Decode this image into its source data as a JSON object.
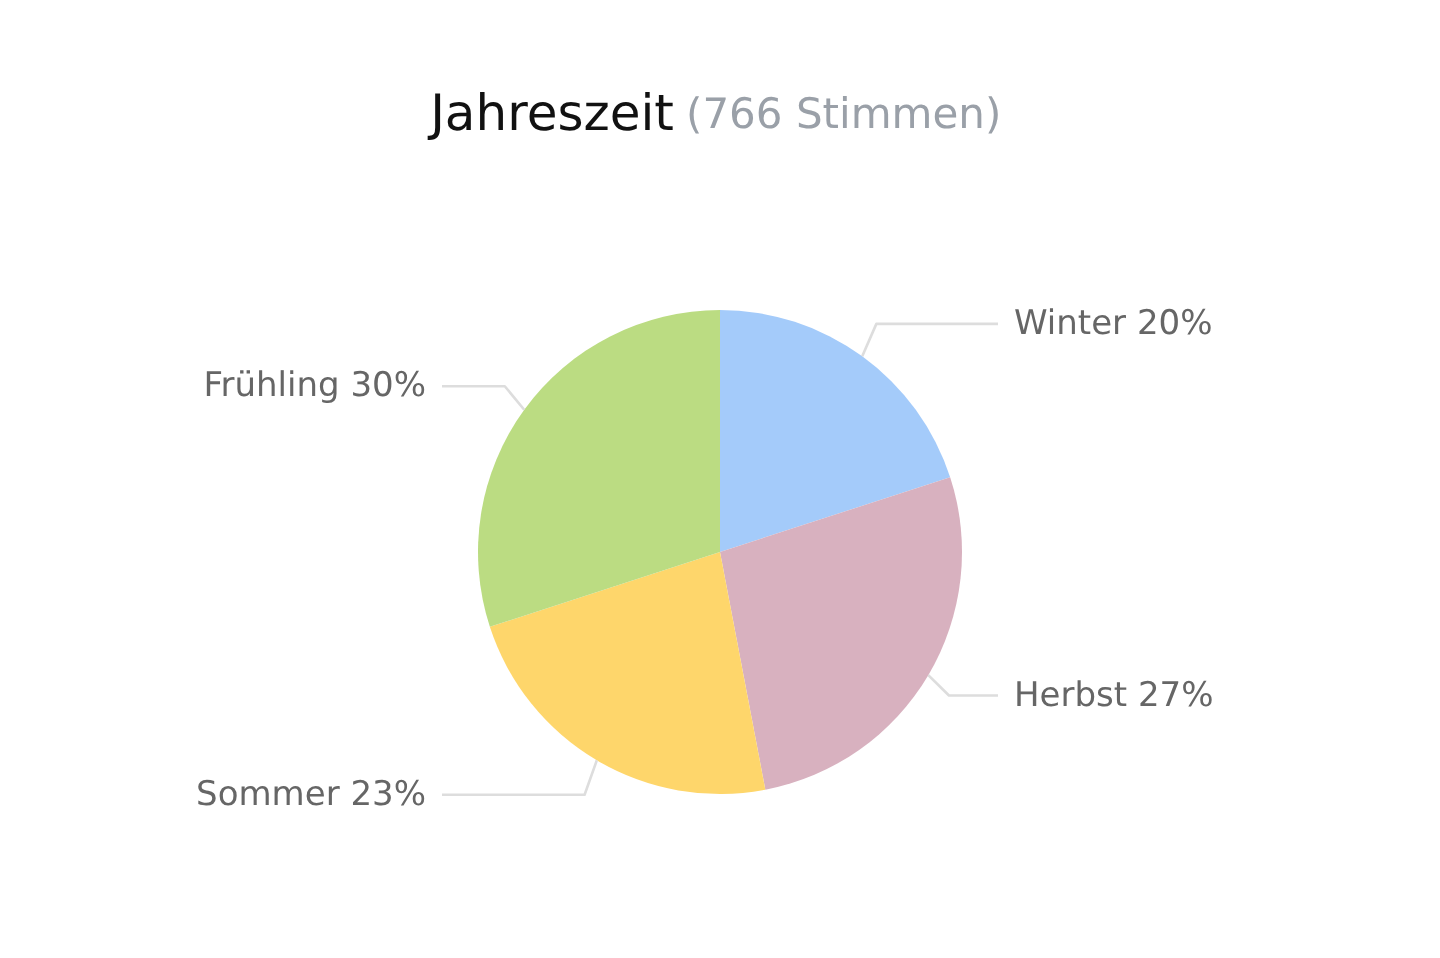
{
  "chart_data": {
    "type": "pie",
    "title": "Jahreszeit",
    "subtitle": "(766 Stimmen)",
    "categories": [
      "Winter",
      "Herbst",
      "Sommer",
      "Frühling"
    ],
    "values": [
      20,
      27,
      23,
      30
    ],
    "colors": [
      "#a4cbfa",
      "#d8b1bf",
      "#fed66b",
      "#bbdc82"
    ],
    "value_labels": [
      "20%",
      "27%",
      "23%",
      "30%"
    ]
  }
}
